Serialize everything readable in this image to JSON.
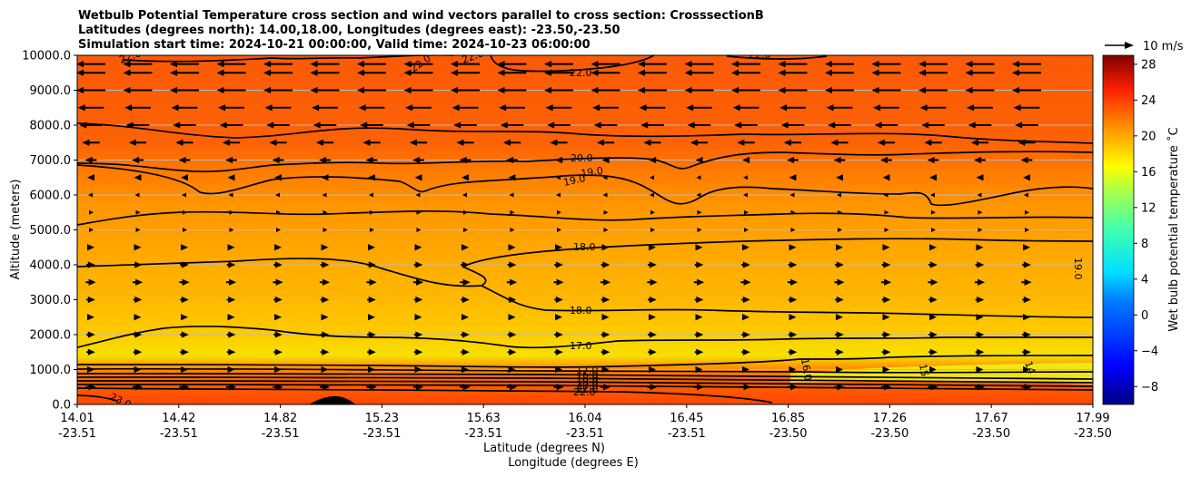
{
  "chart_data": {
    "type": "heatmap",
    "title_lines": [
      "Wetbulb Potential Temperature cross section and wind vectors parallel to cross section: CrosssectionB",
      "Latitudes (degrees north): 14.00,18.00, Longitudes (degrees east): -23.50,-23.50",
      "Simulation start time: 2024-10-21 00:00:00, Valid time: 2024-10-23 06:00:00"
    ],
    "ylabel": "Altitude (meters)",
    "xlabel_lat": "Latitude (degrees N)",
    "xlabel_lon": "Longitude (degrees E)",
    "ylim": [
      0,
      10000
    ],
    "yticks": [
      "0.0",
      "1000.0",
      "2000.0",
      "3000.0",
      "4000.0",
      "5000.0",
      "6000.0",
      "7000.0",
      "8000.0",
      "9000.0",
      "10000.0"
    ],
    "xticks": [
      {
        "lat": "14.01",
        "lon": "-23.51"
      },
      {
        "lat": "14.42",
        "lon": "-23.51"
      },
      {
        "lat": "14.82",
        "lon": "-23.51"
      },
      {
        "lat": "15.23",
        "lon": "-23.51"
      },
      {
        "lat": "15.63",
        "lon": "-23.51"
      },
      {
        "lat": "16.04",
        "lon": "-23.51"
      },
      {
        "lat": "16.45",
        "lon": "-23.51"
      },
      {
        "lat": "16.85",
        "lon": "-23.50"
      },
      {
        "lat": "17.26",
        "lon": "-23.50"
      },
      {
        "lat": "17.67",
        "lon": "-23.50"
      },
      {
        "lat": "17.99",
        "lon": "-23.50"
      }
    ],
    "colorbar": {
      "label": "Wet bulb potential temperature ˚C",
      "range": [
        -10,
        29
      ],
      "ticks": [
        "28",
        "24",
        "20",
        "16",
        "12",
        "8",
        "4",
        "0",
        "−4",
        "−8"
      ]
    },
    "quiver_key": "10 m/s",
    "grid": "horizontal",
    "contour_labels": [
      "22.0",
      "22.0",
      "22.0",
      "22.0",
      "22.0",
      "20.0",
      "19.0",
      "19.0",
      "18.0",
      "18.0",
      "17.0",
      "17.0",
      "16.0",
      "18.0",
      "19.0",
      "20.0",
      "21.0",
      "22.0",
      "23.0",
      "16.0",
      "15",
      "14",
      "19.0"
    ],
    "wind_layers": [
      {
        "altitude": 9750,
        "u": -1.0
      },
      {
        "altitude": 9500,
        "u": -1.0
      },
      {
        "altitude": 9000,
        "u": -1.0
      },
      {
        "altitude": 8500,
        "u": -0.9
      },
      {
        "altitude": 8000,
        "u": -0.8
      },
      {
        "altitude": 7500,
        "u": -0.6
      },
      {
        "altitude": 7000,
        "u": -0.4
      },
      {
        "altitude": 6500,
        "u": -0.25
      },
      {
        "altitude": 6000,
        "u": -0.12
      },
      {
        "altitude": 5500,
        "u": 0.1
      },
      {
        "altitude": 5000,
        "u": 0.15
      },
      {
        "altitude": 4500,
        "u": 0.25
      },
      {
        "altitude": 4000,
        "u": 0.3
      },
      {
        "altitude": 3500,
        "u": 0.35
      },
      {
        "altitude": 3000,
        "u": 0.3
      },
      {
        "altitude": 2500,
        "u": 0.25
      },
      {
        "altitude": 2000,
        "u": 0.3
      },
      {
        "altitude": 1500,
        "u": 0.3
      },
      {
        "altitude": 1000,
        "u": 0.25
      },
      {
        "altitude": 500,
        "u": 0.35
      }
    ],
    "colors": {
      "upper": "#fd5f05",
      "warm": "#ff8a00",
      "mid": "#ffa200",
      "low": "#ffc400",
      "moist": "#e8f020",
      "surface": "#ff4a00"
    }
  }
}
